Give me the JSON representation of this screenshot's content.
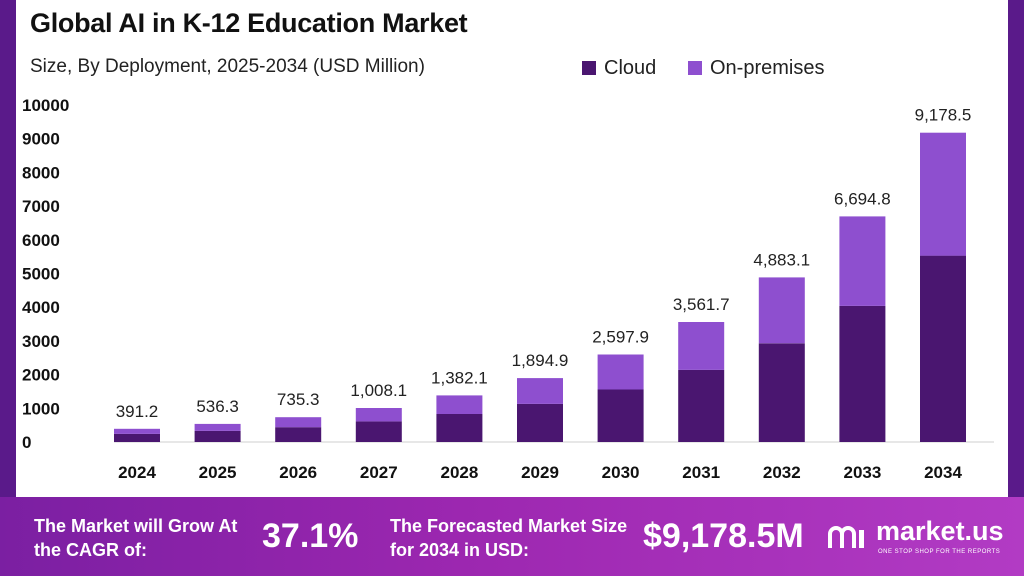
{
  "colors": {
    "cloud": "#4a1670",
    "on_premises": "#8e4fcf",
    "border": "#5a1a8a",
    "footer_start": "#7b1fa2",
    "footer_end": "#b23bc4"
  },
  "chart_data": {
    "type": "bar",
    "stacked": true,
    "title": "Global AI in K-12 Education Market",
    "subtitle": "Size, By Deployment, 2025-2034 (USD Million)",
    "categories": [
      "2024",
      "2025",
      "2026",
      "2027",
      "2028",
      "2029",
      "2030",
      "2031",
      "2032",
      "2033",
      "2034"
    ],
    "series": [
      {
        "name": "Cloud",
        "values": [
          240,
          330,
          440,
          610,
          830,
          1130,
          1560,
          2140,
          2930,
          4040,
          5530
        ]
      },
      {
        "name": "On-premises",
        "values": [
          151.2,
          206.3,
          295.3,
          398.1,
          552.1,
          764.9,
          1037.9,
          1421.7,
          1953.1,
          2654.8,
          3648.5
        ]
      }
    ],
    "totals": [
      391.2,
      536.3,
      735.3,
      1008.1,
      1382.1,
      1894.9,
      2597.9,
      3561.7,
      4883.1,
      6694.8,
      9178.5
    ],
    "total_labels": [
      "391.2",
      "536.3",
      "735.3",
      "1,008.1",
      "1,382.1",
      "1,894.9",
      "2,597.9",
      "3,561.7",
      "4,883.1",
      "6,694.8",
      "9,178.5"
    ],
    "y_ticks": [
      0,
      1000,
      2000,
      3000,
      4000,
      5000,
      6000,
      7000,
      8000,
      9000,
      10000
    ],
    "ylim": [
      0,
      10000
    ],
    "grid": false,
    "legend_position": "top-right"
  },
  "footer": {
    "cagr_label": "The Market will Grow At the CAGR of:",
    "cagr_value": "37.1%",
    "forecast_label": "The Forecasted Market Size for 2034 in USD:",
    "forecast_value": "$9,178.5M",
    "brand_name": "market.us",
    "brand_tagline": "ONE STOP SHOP FOR THE REPORTS",
    "brand_icon": "market-us-logo-icon"
  }
}
